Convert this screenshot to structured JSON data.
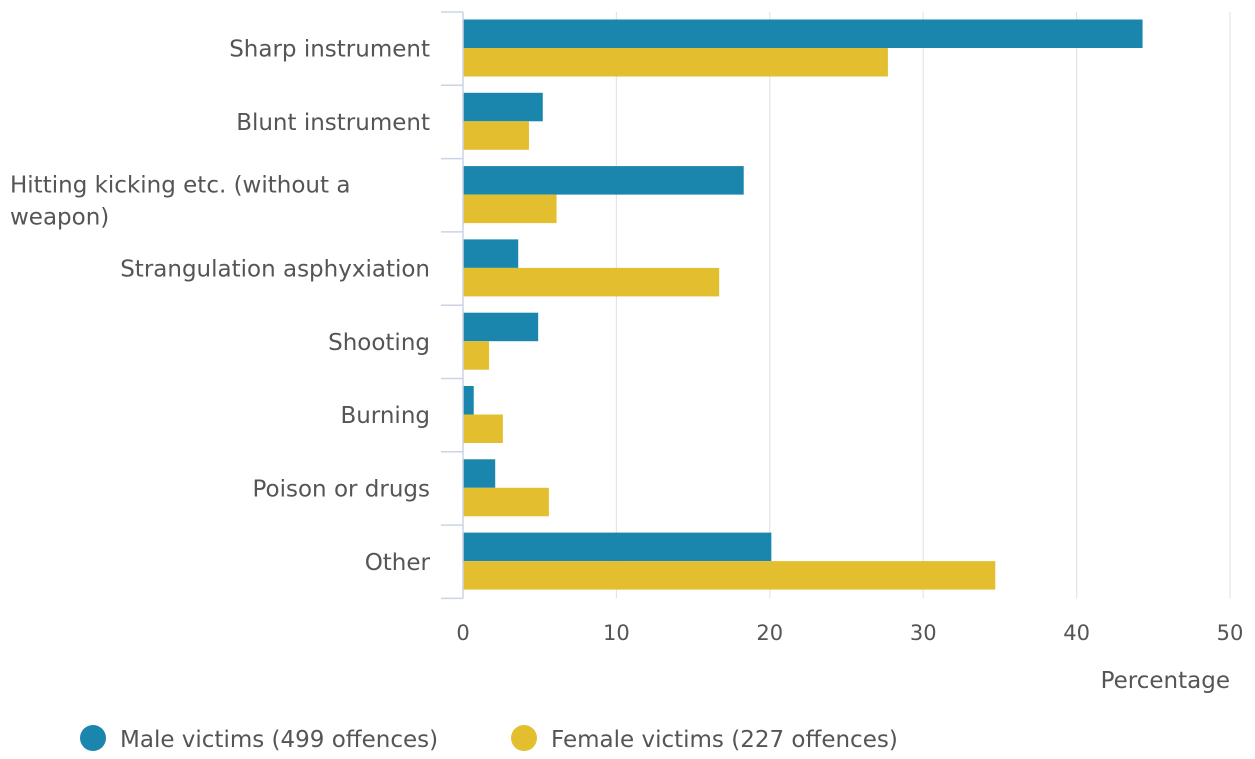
{
  "chart_data": {
    "type": "bar",
    "orientation": "horizontal",
    "categories": [
      "Sharp instrument",
      "Blunt instrument",
      "Hitting kicking etc. (without a weapon)",
      "Strangulation asphyxiation",
      "Shooting",
      "Burning",
      "Poison or drugs",
      "Other"
    ],
    "series": [
      {
        "name": "Male victims (499 offences)",
        "color": "#1a86ad",
        "values": [
          44.3,
          5.2,
          18.3,
          3.6,
          4.9,
          0.7,
          2.1,
          20.1
        ]
      },
      {
        "name": "Female victims (227 offences)",
        "color": "#e3bf2f",
        "values": [
          27.7,
          4.3,
          6.1,
          16.7,
          1.7,
          2.6,
          5.6,
          34.7
        ]
      }
    ],
    "xlabel": "Percentage",
    "ylabel": "",
    "xlim": [
      0,
      50
    ],
    "xticks": [
      0,
      10,
      20,
      30,
      40,
      50
    ],
    "grid": true,
    "legend_position": "bottom-left"
  }
}
